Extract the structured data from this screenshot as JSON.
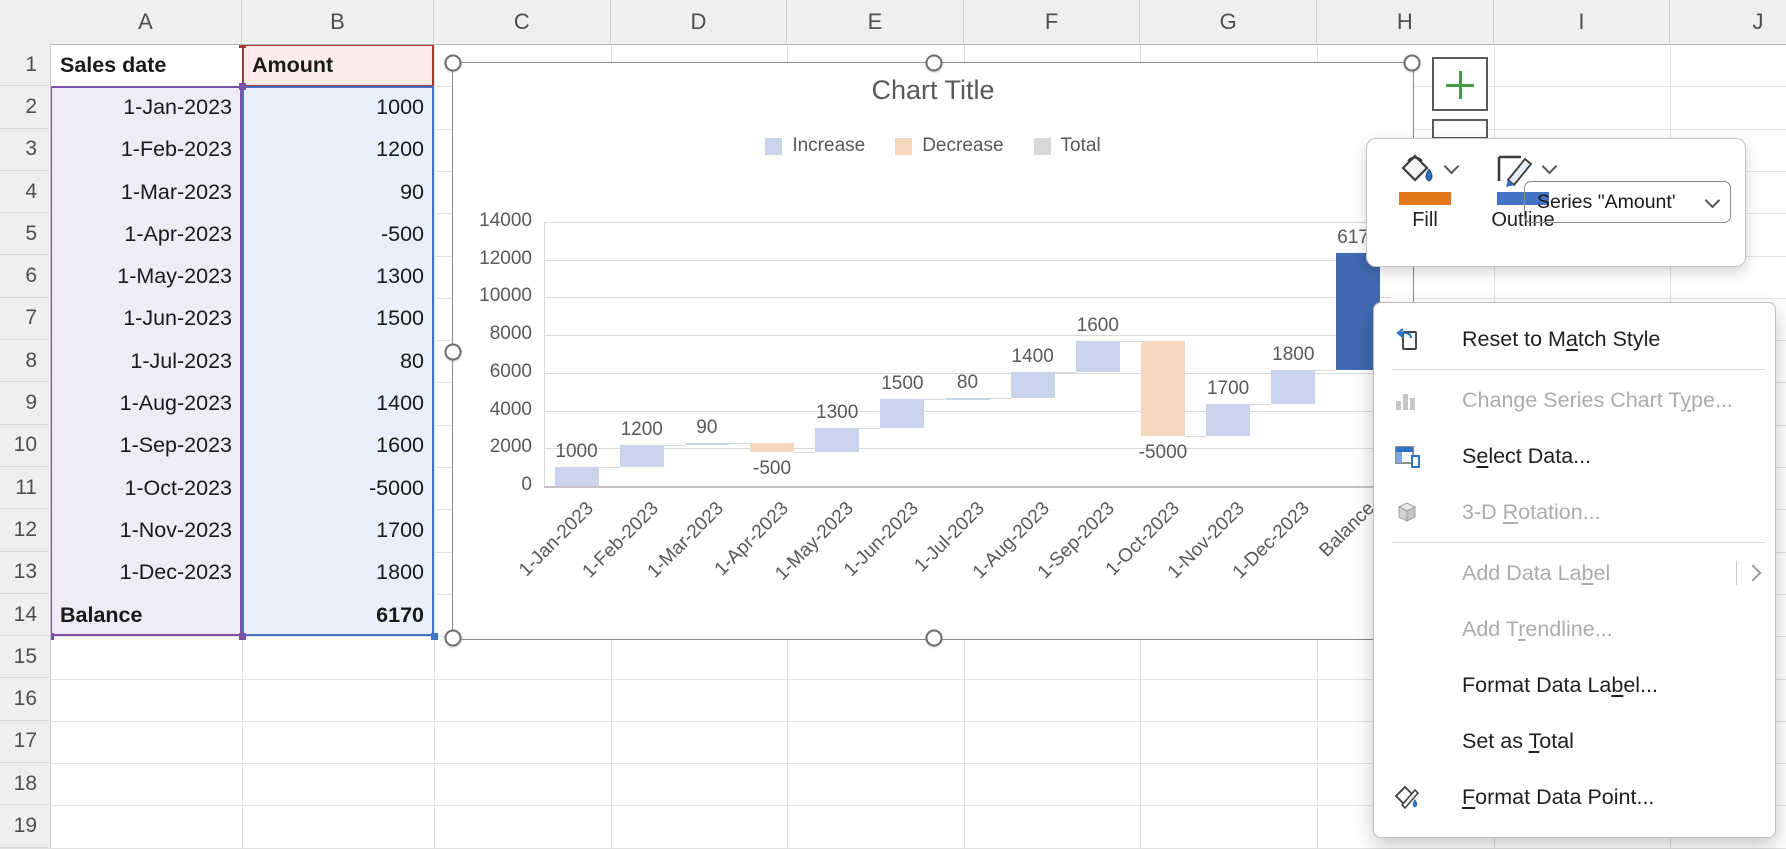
{
  "spreadsheet": {
    "column_headers": [
      "A",
      "B",
      "C",
      "D",
      "E",
      "F",
      "G",
      "H",
      "I",
      "J"
    ],
    "row_numbers": [
      "1",
      "2",
      "3",
      "4",
      "5",
      "6",
      "7",
      "8",
      "9",
      "10",
      "11",
      "12",
      "13",
      "14",
      "15",
      "16",
      "17",
      "18",
      "19"
    ],
    "table": {
      "col_a_header": "Sales date",
      "col_b_header": "Amount",
      "rows": [
        {
          "date": "1-Jan-2023",
          "amount": "1000"
        },
        {
          "date": "1-Feb-2023",
          "amount": "1200"
        },
        {
          "date": "1-Mar-2023",
          "amount": "90"
        },
        {
          "date": "1-Apr-2023",
          "amount": "-500"
        },
        {
          "date": "1-May-2023",
          "amount": "1300"
        },
        {
          "date": "1-Jun-2023",
          "amount": "1500"
        },
        {
          "date": "1-Jul-2023",
          "amount": "80"
        },
        {
          "date": "1-Aug-2023",
          "amount": "1400"
        },
        {
          "date": "1-Sep-2023",
          "amount": "1600"
        },
        {
          "date": "1-Oct-2023",
          "amount": "-5000"
        },
        {
          "date": "1-Nov-2023",
          "amount": "1700"
        },
        {
          "date": "1-Dec-2023",
          "amount": "1800"
        },
        {
          "date": "Balance",
          "amount": "6170"
        }
      ]
    },
    "range_colors": {
      "dates_border": "#7A52A8",
      "dates_fill": "#EFEBF7",
      "header_border": "#A63A32",
      "header_fill": "#FBEBEA",
      "amounts_border": "#4472C4",
      "amounts_fill": "#E9EFFB"
    }
  },
  "chart_data": {
    "type": "waterfall-bar",
    "title": "Chart Title",
    "categories": [
      "1-Jan-2023",
      "1-Feb-2023",
      "1-Mar-2023",
      "1-Apr-2023",
      "1-May-2023",
      "1-Jun-2023",
      "1-Jul-2023",
      "1-Aug-2023",
      "1-Sep-2023",
      "1-Oct-2023",
      "1-Nov-2023",
      "1-Dec-2023",
      "Balance"
    ],
    "values": [
      1000,
      1200,
      90,
      -500,
      1300,
      1500,
      80,
      1400,
      1600,
      -5000,
      1700,
      1800,
      6170
    ],
    "labels": [
      "1000",
      "1200",
      "90",
      "-500",
      "1300",
      "1500",
      "80",
      "1400",
      "1600",
      "-5000",
      "1700",
      "1800",
      "6170"
    ],
    "y_ticks": [
      "14000",
      "12000",
      "10000",
      "8000",
      "6000",
      "4000",
      "2000",
      "0"
    ],
    "ylim": [
      0,
      14000
    ],
    "grid": true,
    "legend_position": "top",
    "legend": [
      {
        "label": "Increase",
        "color": "#C9D3EB"
      },
      {
        "label": "Decrease",
        "color": "#F4D8BE"
      },
      {
        "label": "Total",
        "color": "#D9D9D9"
      }
    ],
    "colors": {
      "increase": "#C9D3EB",
      "decrease": "#F4D8BE",
      "total": "#D9D9D9",
      "selected": "#4169B1"
    },
    "selected_index": 12
  },
  "mini_toolbar": {
    "fill_label": "Fill",
    "outline_label": "Outline",
    "fill_color": "#E2761B",
    "outline_color": "#4472C4",
    "series_selector": "Series \"Amount'"
  },
  "context_menu": {
    "items": [
      {
        "pre": "Reset to M",
        "key": "a",
        "post": "tch Style",
        "enabled": true,
        "icon": "reset",
        "name": "menu-item-reset-to-match-style",
        "sep_after": true
      },
      {
        "pre": "Change Series Chart T",
        "key": "y",
        "post": "pe...",
        "enabled": false,
        "icon": "charttype",
        "name": "menu-item-change-series-chart-type"
      },
      {
        "pre": "S",
        "key": "e",
        "post": "lect Data...",
        "enabled": true,
        "icon": "selectdata",
        "name": "menu-item-select-data"
      },
      {
        "pre": "3-D ",
        "key": "R",
        "post": "otation...",
        "enabled": false,
        "icon": "rotation",
        "name": "menu-item-3d-rotation",
        "sep_after": true
      },
      {
        "pre": "Add Data La",
        "key": "b",
        "post": "el",
        "enabled": false,
        "icon": null,
        "submenu": true,
        "name": "menu-item-add-data-label"
      },
      {
        "pre": "Add T",
        "key": "r",
        "post": "endline...",
        "enabled": false,
        "icon": null,
        "name": "menu-item-add-trendline"
      },
      {
        "pre": "Format Data La",
        "key": "b",
        "post": "el...",
        "enabled": true,
        "icon": null,
        "name": "menu-item-format-data-label"
      },
      {
        "pre": "Set as ",
        "key": "T",
        "post": "otal",
        "enabled": true,
        "icon": null,
        "name": "menu-item-set-as-total"
      },
      {
        "pre": "",
        "key": "F",
        "post": "ormat Data Point...",
        "enabled": true,
        "icon": "formatpoint",
        "name": "menu-item-format-data-point"
      }
    ]
  }
}
